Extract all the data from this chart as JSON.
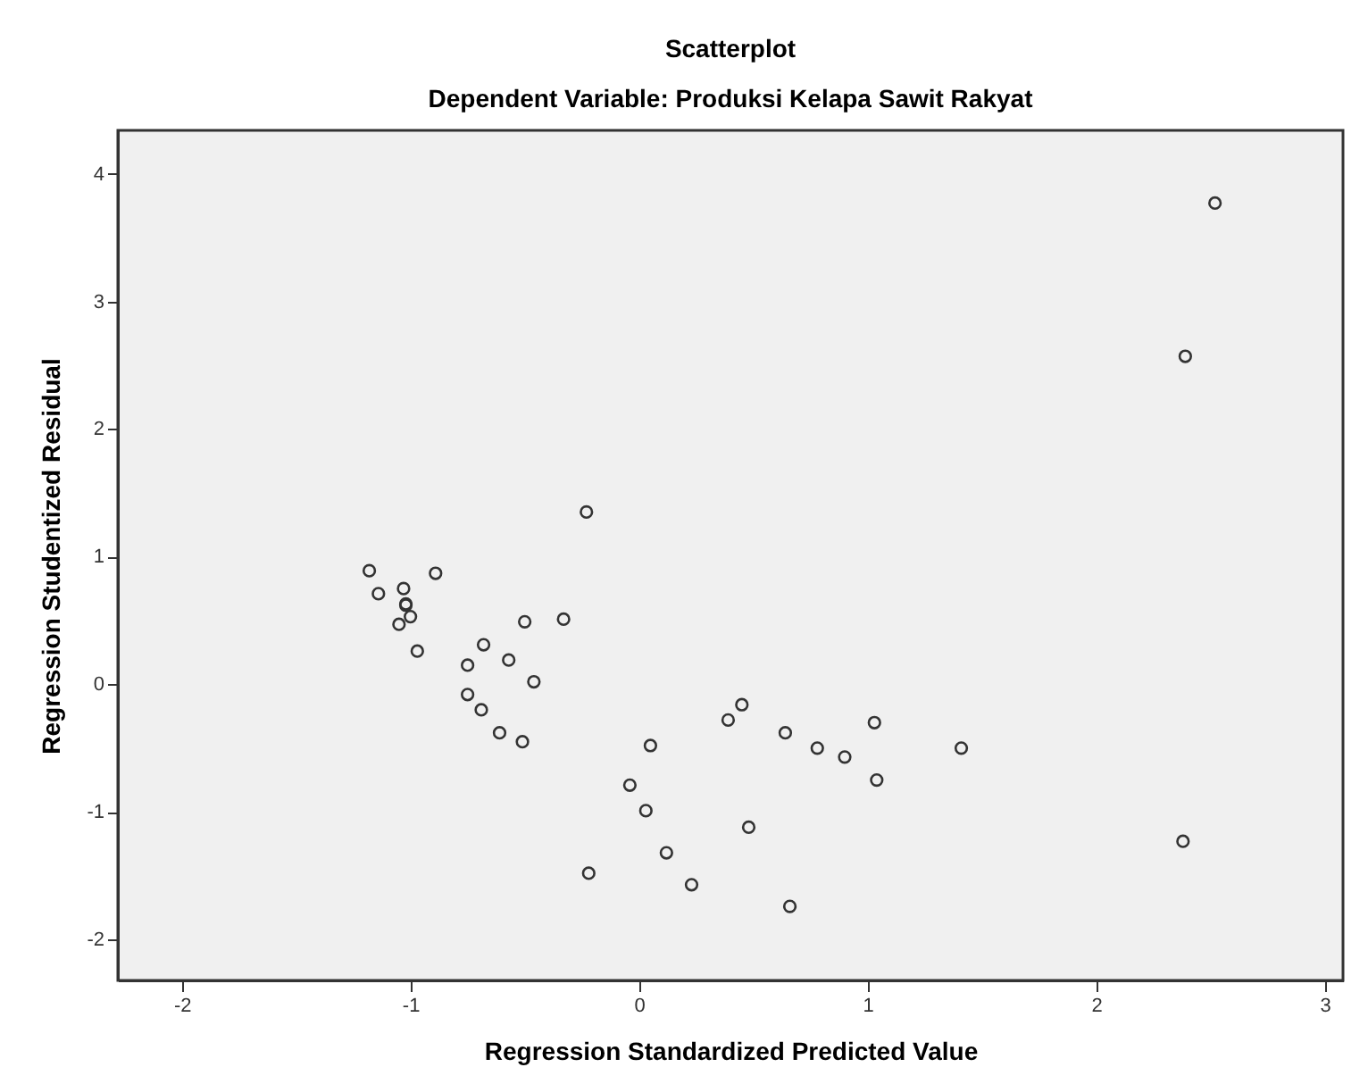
{
  "chart_data": {
    "type": "scatter",
    "title": "Scatterplot",
    "subtitle": "Dependent Variable: Produksi Kelapa Sawit Rakyat",
    "xlabel": "Regression Standardized Predicted Value",
    "ylabel": "Regression Studentized Residual",
    "x": [
      -0.23,
      -1.18,
      -0.89,
      -1.14,
      -1.03,
      -1.02,
      -1.02,
      -1.0,
      -1.05,
      -0.97,
      -0.5,
      -0.33,
      -0.68,
      -0.75,
      -0.57,
      -0.46,
      -0.75,
      -0.69,
      -0.61,
      -0.51,
      0.05,
      -0.04,
      0.03,
      0.12,
      -0.22,
      0.45,
      0.39,
      0.64,
      0.78,
      0.9,
      1.03,
      1.04,
      1.41,
      0.48,
      0.23,
      0.66,
      2.52,
      2.39,
      2.38
    ],
    "series": [
      {
        "color": "#333333",
        "values": [
          1.35,
          0.89,
          0.87,
          0.71,
          0.75,
          0.63,
          0.62,
          0.53,
          0.47,
          0.26,
          0.49,
          0.51,
          0.31,
          0.15,
          0.19,
          0.02,
          -0.08,
          -0.2,
          -0.38,
          -0.45,
          -0.48,
          -0.79,
          -0.99,
          -1.32,
          -1.48,
          -0.16,
          -0.28,
          -0.38,
          -0.5,
          -0.57,
          -0.3,
          -0.75,
          -0.5,
          -1.12,
          -1.57,
          -1.74,
          3.77,
          2.57,
          -1.23
        ]
      }
    ],
    "xlim": [
      -2.28,
      3.08
    ],
    "xticks": [
      -2,
      -1,
      0,
      1,
      2,
      3
    ],
    "ylim": [
      -2.32,
      4.34
    ],
    "yticks": [
      -2,
      -1,
      0,
      1,
      2,
      3,
      4
    ],
    "marker": "circle",
    "grid": false
  }
}
